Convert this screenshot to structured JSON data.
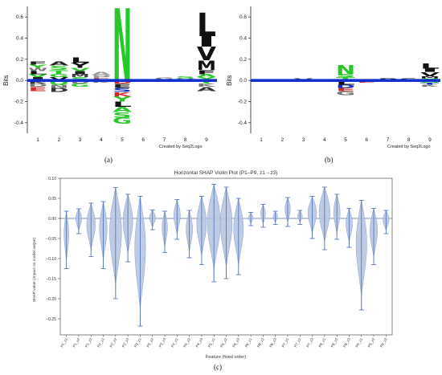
{
  "chart_data": [
    {
      "type": "other",
      "panel": "(a)",
      "credit": "Created by Seq2Logo",
      "ylabel": "Bits",
      "ylim": [
        -0.5,
        0.7
      ],
      "yticks": [
        -0.4,
        -0.2,
        0.0,
        0.2,
        0.4,
        0.6
      ],
      "ytick_labels": [
        "-0.4",
        "-0.2",
        "0.0",
        "0.2",
        "0.4",
        "0.6"
      ],
      "categories": [
        "1",
        "2",
        "3",
        "4",
        "5",
        "6",
        "7",
        "8",
        "9"
      ],
      "positions": [
        {
          "pos": "1",
          "up": [
            {
              "l": "F",
              "c": "#222222",
              "h": 0.03
            },
            {
              "l": "Y",
              "c": "#28c828",
              "h": 0.03
            },
            {
              "l": "W",
              "c": "#777777",
              "h": 0.03
            },
            {
              "l": "L",
              "c": "#111111",
              "h": 0.03
            },
            {
              "l": "V",
              "c": "#28c828",
              "h": 0.03
            },
            {
              "l": "I",
              "c": "#222222",
              "h": 0.03
            }
          ],
          "down": [
            {
              "l": "K",
              "c": "#333333",
              "h": 0.03
            },
            {
              "l": "D",
              "c": "#777777",
              "h": 0.03
            },
            {
              "l": "E",
              "c": "#c83030",
              "h": 0.04
            }
          ]
        },
        {
          "pos": "2",
          "up": [
            {
              "l": "A",
              "c": "#222222",
              "h": 0.04
            },
            {
              "l": "S",
              "c": "#28c828",
              "h": 0.04
            },
            {
              "l": "T",
              "c": "#28c828",
              "h": 0.04
            },
            {
              "l": "G",
              "c": "#28c828",
              "h": 0.03
            },
            {
              "l": "V",
              "c": "#111111",
              "h": 0.03
            }
          ],
          "down": [
            {
              "l": "Q",
              "c": "#28c828",
              "h": 0.04
            },
            {
              "l": "N",
              "c": "#777777",
              "h": 0.03
            },
            {
              "l": "D",
              "c": "#333333",
              "h": 0.04
            }
          ]
        },
        {
          "pos": "3",
          "up": [
            {
              "l": "L",
              "c": "#111111",
              "h": 0.05
            },
            {
              "l": "Y",
              "c": "#111111",
              "h": 0.05
            },
            {
              "l": "V",
              "c": "#28c828",
              "h": 0.03
            },
            {
              "l": "I",
              "c": "#222222",
              "h": 0.03
            },
            {
              "l": "M",
              "c": "#444444",
              "h": 0.03
            },
            {
              "l": "S",
              "c": "#28c828",
              "h": 0.03
            }
          ],
          "down": [
            {
              "l": "D",
              "c": "#777777",
              "h": 0.03
            },
            {
              "l": "G",
              "c": "#28c828",
              "h": 0.03
            }
          ]
        },
        {
          "pos": "4",
          "up": [
            {
              "l": "A",
              "c": "#999999",
              "h": 0.03
            },
            {
              "l": "P",
              "c": "#999999",
              "h": 0.03
            },
            {
              "l": "E",
              "c": "#c83030",
              "h": 0.02
            }
          ],
          "down": [
            {
              "l": "K",
              "c": "#777777",
              "h": 0.02
            }
          ]
        },
        {
          "pos": "5",
          "up": [
            {
              "l": "N",
              "c": "#28c828",
              "h": 0.68
            }
          ],
          "down": [
            {
              "l": "D",
              "c": "#e02020",
              "h": 0.03
            },
            {
              "l": "E",
              "c": "#222222",
              "h": 0.04
            },
            {
              "l": "S",
              "c": "#1030c0",
              "h": 0.04
            },
            {
              "l": "K",
              "c": "#e02020",
              "h": 0.04
            },
            {
              "l": "Y",
              "c": "#28c828",
              "h": 0.05
            },
            {
              "l": "L",
              "c": "#111111",
              "h": 0.05
            },
            {
              "l": "A",
              "c": "#28c828",
              "h": 0.05
            },
            {
              "l": "S",
              "c": "#28c828",
              "h": 0.05
            },
            {
              "l": "G",
              "c": "#28c828",
              "h": 0.06
            }
          ]
        },
        {
          "pos": "6",
          "up": [
            {
              "l": "E",
              "c": "#c83030",
              "h": 0.01
            }
          ],
          "down": [
            {
              "l": "P",
              "c": "#777777",
              "h": 0.01
            }
          ]
        },
        {
          "pos": "7",
          "up": [
            {
              "l": "G",
              "c": "#777777",
              "h": 0.02
            },
            {
              "l": "S",
              "c": "#c83030",
              "h": 0.01
            }
          ],
          "down": [
            {
              "l": "A",
              "c": "#999999",
              "h": 0.01
            }
          ]
        },
        {
          "pos": "8",
          "up": [
            {
              "l": "S",
              "c": "#28c828",
              "h": 0.02
            },
            {
              "l": "V",
              "c": "#777777",
              "h": 0.02
            }
          ],
          "down": [
            {
              "l": "G",
              "c": "#28c828",
              "h": 0.01
            }
          ]
        },
        {
          "pos": "9",
          "up": [
            {
              "l": "L",
              "c": "#111111",
              "h": 0.22
            },
            {
              "l": "I",
              "c": "#111111",
              "h": 0.1
            },
            {
              "l": "V",
              "c": "#111111",
              "h": 0.13
            },
            {
              "l": "M",
              "c": "#111111",
              "h": 0.09
            },
            {
              "l": "F",
              "c": "#111111",
              "h": 0.04
            },
            {
              "l": "A",
              "c": "#28c828",
              "h": 0.03
            },
            {
              "l": "Y",
              "c": "#28c828",
              "h": 0.03
            }
          ],
          "down": [
            {
              "l": "T",
              "c": "#28c828",
              "h": 0.03
            },
            {
              "l": "K",
              "c": "#777777",
              "h": 0.03
            },
            {
              "l": "A",
              "c": "#333333",
              "h": 0.04
            }
          ]
        }
      ]
    },
    {
      "type": "other",
      "panel": "(b)",
      "credit": "Created by Seq2Logo",
      "ylabel": "Bits",
      "ylim": [
        -0.5,
        0.7
      ],
      "yticks": [
        -0.4,
        -0.2,
        0.0,
        0.2,
        0.4,
        0.6
      ],
      "ytick_labels": [
        "-0.4",
        "-0.2",
        "0.0",
        "0.2",
        "0.4",
        "0.6"
      ],
      "categories": [
        "1",
        "2",
        "3",
        "4",
        "5",
        "6",
        "7",
        "8",
        "9"
      ],
      "positions": [
        {
          "pos": "1",
          "up": [
            {
              "l": "S",
              "c": "#777777",
              "h": 0.01
            }
          ],
          "down": [
            {
              "l": "E",
              "c": "#c83030",
              "h": 0.01
            }
          ]
        },
        {
          "pos": "2",
          "up": [
            {
              "l": "A",
              "c": "#333333",
              "h": 0.01
            }
          ],
          "down": [
            {
              "l": "D",
              "c": "#777777",
              "h": 0.01
            }
          ]
        },
        {
          "pos": "3",
          "up": [
            {
              "l": "V",
              "c": "#333333",
              "h": 0.02
            }
          ],
          "down": [
            {
              "l": "K",
              "c": "#777777",
              "h": 0.01
            }
          ]
        },
        {
          "pos": "4",
          "up": [
            {
              "l": "E",
              "c": "#c83030",
              "h": 0.01
            }
          ],
          "down": [
            {
              "l": "P",
              "c": "#777777",
              "h": 0.01
            }
          ]
        },
        {
          "pos": "5",
          "up": [
            {
              "l": "N",
              "c": "#28c828",
              "h": 0.09
            },
            {
              "l": "S",
              "c": "#28c828",
              "h": 0.03
            },
            {
              "l": "T",
              "c": "#28c828",
              "h": 0.03
            }
          ],
          "down": [
            {
              "l": "L",
              "c": "#111111",
              "h": 0.04
            },
            {
              "l": "D",
              "c": "#1030c0",
              "h": 0.03
            },
            {
              "l": "E",
              "c": "#c83030",
              "h": 0.03
            },
            {
              "l": "G",
              "c": "#777777",
              "h": 0.04
            }
          ]
        },
        {
          "pos": "6",
          "up": [
            {
              "l": "G",
              "c": "#28c828",
              "h": 0.01
            }
          ],
          "down": [
            {
              "l": "E",
              "c": "#c83030",
              "h": 0.02
            }
          ]
        },
        {
          "pos": "7",
          "up": [
            {
              "l": "P",
              "c": "#111111",
              "h": 0.02
            }
          ],
          "down": [
            {
              "l": "A",
              "c": "#333333",
              "h": 0.01
            }
          ]
        },
        {
          "pos": "8",
          "up": [
            {
              "l": "S",
              "c": "#111111",
              "h": 0.02
            }
          ],
          "down": [
            {
              "l": "G",
              "c": "#777777",
              "h": 0.01
            }
          ]
        },
        {
          "pos": "9",
          "up": [
            {
              "l": "L",
              "c": "#111111",
              "h": 0.05
            },
            {
              "l": "I",
              "c": "#111111",
              "h": 0.03
            },
            {
              "l": "V",
              "c": "#111111",
              "h": 0.04
            },
            {
              "l": "M",
              "c": "#111111",
              "h": 0.02
            },
            {
              "l": "Y",
              "c": "#28c828",
              "h": 0.02
            }
          ],
          "down": [
            {
              "l": "A",
              "c": "#28c828",
              "h": 0.02
            },
            {
              "l": "T",
              "c": "#1030c0",
              "h": 0.02
            },
            {
              "l": "K",
              "c": "#777777",
              "h": 0.02
            }
          ]
        }
      ]
    },
    {
      "type": "other",
      "panel": "(c)",
      "title": "Horizontal SHAP Violin Plot (P1–P9, z1→z3)",
      "xlabel": "Feature (fixed order)",
      "ylabel": "SHAP value (impact on model output)",
      "ylim": [
        -0.29,
        0.1
      ],
      "yticks": [
        -0.25,
        -0.2,
        -0.15,
        -0.1,
        -0.05,
        0.0,
        0.05,
        0.1
      ],
      "ytick_labels": [
        "−0.25",
        "−0.20",
        "−0.15",
        "−0.10",
        "−0.05",
        "0.00",
        "0.05",
        "0.10"
      ],
      "grid": false,
      "colors": {
        "violin": "#b7c5e0",
        "violin_edge": "#8fa3cc",
        "whisker": "#4a6fb5",
        "zero_line": "#4a6fb5"
      },
      "features": [
        {
          "name": "P1_z1",
          "min": -0.125,
          "max": 0.018,
          "halfwidth": 0.022
        },
        {
          "name": "P1_z2",
          "min": -0.038,
          "max": 0.024,
          "halfwidth": 0.028
        },
        {
          "name": "P1_z3",
          "min": -0.095,
          "max": 0.038,
          "halfwidth": 0.04
        },
        {
          "name": "P2_z1",
          "min": -0.125,
          "max": 0.042,
          "halfwidth": 0.035
        },
        {
          "name": "P2_z2",
          "min": -0.2,
          "max": 0.077,
          "halfwidth": 0.055
        },
        {
          "name": "P2_z3",
          "min": -0.108,
          "max": 0.06,
          "halfwidth": 0.045
        },
        {
          "name": "P3_z1",
          "min": -0.268,
          "max": 0.055,
          "halfwidth": 0.05
        },
        {
          "name": "P3_z2",
          "min": -0.028,
          "max": 0.021,
          "halfwidth": 0.028
        },
        {
          "name": "P3_z3",
          "min": -0.085,
          "max": 0.018,
          "halfwidth": 0.025
        },
        {
          "name": "P4_z1",
          "min": -0.052,
          "max": 0.047,
          "halfwidth": 0.03
        },
        {
          "name": "P4_z2",
          "min": -0.098,
          "max": 0.02,
          "halfwidth": 0.03
        },
        {
          "name": "P4_z3",
          "min": -0.115,
          "max": 0.055,
          "halfwidth": 0.045
        },
        {
          "name": "P5_z1",
          "min": -0.158,
          "max": 0.085,
          "halfwidth": 0.06
        },
        {
          "name": "P5_z2",
          "min": -0.15,
          "max": 0.078,
          "halfwidth": 0.055
        },
        {
          "name": "P5_z3",
          "min": -0.14,
          "max": 0.05,
          "halfwidth": 0.045
        },
        {
          "name": "P6_z1",
          "min": -0.018,
          "max": 0.015,
          "halfwidth": 0.02
        },
        {
          "name": "P6_z2",
          "min": -0.022,
          "max": 0.035,
          "halfwidth": 0.022
        },
        {
          "name": "P6_z3",
          "min": -0.015,
          "max": 0.018,
          "halfwidth": 0.02
        },
        {
          "name": "P7_z1",
          "min": -0.02,
          "max": 0.052,
          "halfwidth": 0.025
        },
        {
          "name": "P7_z2",
          "min": -0.015,
          "max": 0.02,
          "halfwidth": 0.022
        },
        {
          "name": "P7_z3",
          "min": -0.05,
          "max": 0.055,
          "halfwidth": 0.04
        },
        {
          "name": "P8_z1",
          "min": -0.078,
          "max": 0.078,
          "halfwidth": 0.05
        },
        {
          "name": "P8_z2",
          "min": -0.052,
          "max": 0.06,
          "halfwidth": 0.03
        },
        {
          "name": "P8_z3",
          "min": -0.072,
          "max": 0.025,
          "halfwidth": 0.03
        },
        {
          "name": "P9_z1",
          "min": -0.228,
          "max": 0.045,
          "halfwidth": 0.05
        },
        {
          "name": "P9_z2",
          "min": -0.115,
          "max": 0.025,
          "halfwidth": 0.035
        },
        {
          "name": "P9_z3",
          "min": -0.038,
          "max": 0.02,
          "halfwidth": 0.028
        }
      ]
    }
  ]
}
